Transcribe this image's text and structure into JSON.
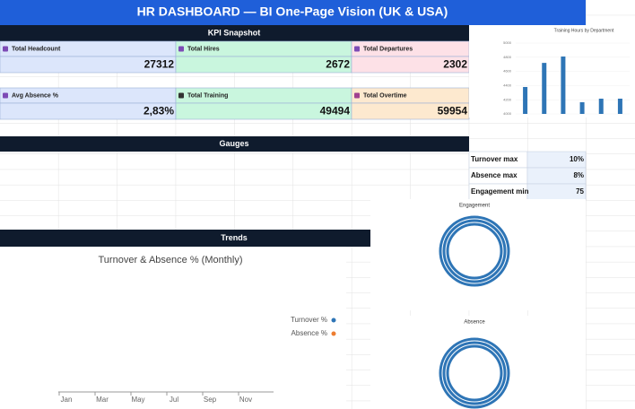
{
  "header": {
    "title": "HR DASHBOARD — BI One-Page Vision (UK & USA)"
  },
  "sections": {
    "kpi": "KPI Snapshot",
    "gauges": "Gauges",
    "trends": "Trends"
  },
  "kpis": [
    {
      "label": "Total Headcount",
      "value": "27312"
    },
    {
      "label": "Total Hires",
      "value": "2672"
    },
    {
      "label": "Total Departures",
      "value": "2302"
    },
    {
      "label": "Avg Absence %",
      "value": "2,83%"
    },
    {
      "label": "Total Training",
      "value": "49494"
    },
    {
      "label": "Total Overtime",
      "value": "59954"
    }
  ],
  "thresholds": {
    "rows": [
      [
        "Turnover max",
        "10%"
      ],
      [
        "Absence max",
        "8%"
      ],
      [
        "Engagement min",
        "75"
      ]
    ]
  },
  "training_chart": {
    "type": "bar",
    "title": "Training Hours by Department",
    "values": [
      4380,
      4720,
      4810,
      4165,
      4215,
      4215
    ],
    "color": "#2e75b6",
    "ylim": [
      4000,
      5000
    ],
    "yticks": [
      4000,
      4200,
      4400,
      4600,
      4800,
      5000
    ]
  },
  "trend_chart": {
    "type": "line",
    "title": "Turnover & Absence % (Monthly)",
    "categories": [
      "Jan",
      "Mar",
      "May",
      "Jul",
      "Sep",
      "Nov"
    ],
    "series": [
      {
        "name": "Turnover %",
        "color": "#2e75b6"
      },
      {
        "name": "Absence %",
        "color": "#ed7d31"
      }
    ]
  },
  "gauges": {
    "engagement": "Engagement",
    "absence": "Absence"
  }
}
